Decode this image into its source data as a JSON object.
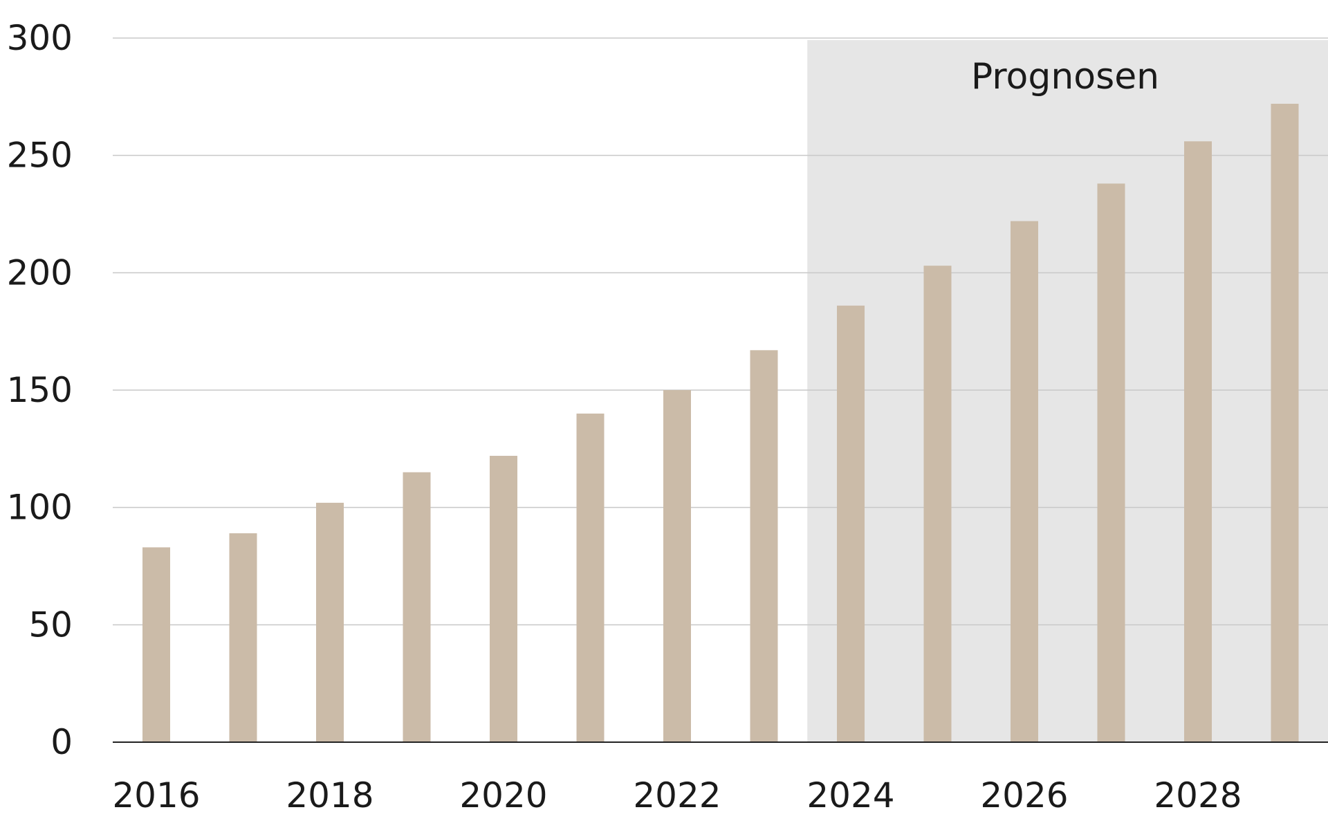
{
  "chart_data": {
    "type": "bar",
    "title": "",
    "xlabel": "",
    "ylabel": "",
    "categories": [
      "2016",
      "2017",
      "2018",
      "2019",
      "2020",
      "2021",
      "2022",
      "2023",
      "2024",
      "2025",
      "2026",
      "2027",
      "2028",
      "2029"
    ],
    "values": [
      83,
      89,
      102,
      115,
      122,
      140,
      150,
      167,
      186,
      203,
      222,
      238,
      256,
      272
    ],
    "ylim": [
      0,
      300
    ],
    "yticks": [
      "0",
      "50",
      "100",
      "150",
      "200",
      "250",
      "300"
    ],
    "xtick_labels": [
      "2016",
      "2018",
      "2020",
      "2022",
      "2024",
      "2026",
      "2028"
    ],
    "forecast_label": "Prognosen",
    "forecast_start_category": "2024",
    "grid": true,
    "legend": "none",
    "colors": {
      "bar": "#cbbba8",
      "forecast_band": "#e6e6e6",
      "grid": "#c8c8c8",
      "axis": "#222222"
    }
  }
}
